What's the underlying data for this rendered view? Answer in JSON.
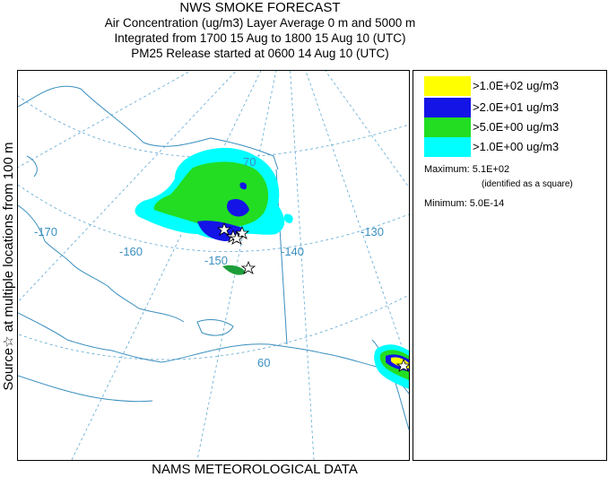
{
  "header": {
    "title": "NWS SMOKE FORECAST",
    "line2": "Air Concentration (ug/m3) Layer Average    0 m and  5000 m",
    "line3": "Integrated from 1700 15 Aug to 1800 15 Aug 10 (UTC)",
    "line4": "PM25 Release started at 0600 14 Aug 10 (UTC)"
  },
  "side_label": "Source☆   at multiple locations    from   100 m",
  "footer": "NAMS METEOROLOGICAL DATA",
  "map": {
    "longitude_labels": [
      "-170",
      "-160",
      "-150",
      "-140",
      "-130"
    ],
    "latitude_labels": [
      "70",
      "60"
    ],
    "colors": {
      "coastline": "#3a8fbf",
      "gridline": "#5fa8d3",
      "border": "#3a8fbf",
      "source_star": "#000000"
    }
  },
  "legend": {
    "items": [
      {
        "label": ">1.0E+02 ug/m3",
        "color": "#ffff00"
      },
      {
        "label": ">2.0E+01 ug/m3",
        "color": "#1414e6"
      },
      {
        "label": ">5.0E+00 ug/m3",
        "color": "#22dd22"
      },
      {
        "label": ">1.0E+00 ug/m3",
        "color": "#00ffff"
      }
    ],
    "maximum": "Maximum: 5.1E+02",
    "maximum_note": "(identified as a square)",
    "minimum": "Minimum: 5.0E-14"
  }
}
